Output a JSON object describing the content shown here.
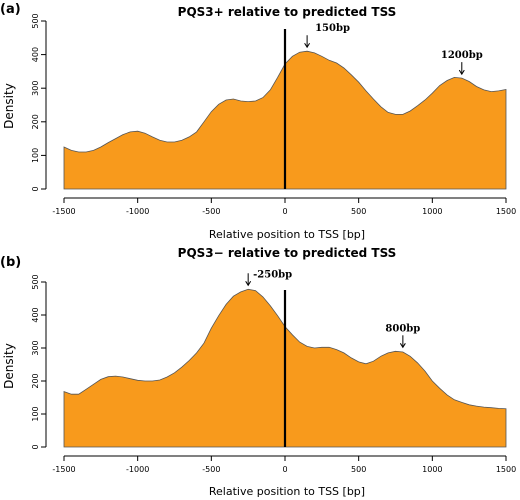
{
  "panels": [
    {
      "label": "(a)",
      "annotations": [
        {
          "text": "150bp",
          "x": 150,
          "y": 410
        },
        {
          "text": "1200bp",
          "x": 1200,
          "y": 330
        }
      ]
    },
    {
      "label": "(b)",
      "annotations": [
        {
          "text": "-250bp",
          "x": -250,
          "y": 478
        },
        {
          "text": "800bp",
          "x": 800,
          "y": 290
        }
      ]
    }
  ],
  "chart_data": [
    {
      "type": "area",
      "title": "PQS3+ relative to predicted TSS",
      "xlabel": "Relative position to TSS [bp]",
      "ylabel": "Density",
      "xlim": [
        -1500,
        1500
      ],
      "ylim": [
        0,
        500
      ],
      "xticks": [
        -1500,
        -1000,
        -500,
        0,
        500,
        1000,
        1500
      ],
      "yticks": [
        0,
        100,
        200,
        300,
        400,
        500
      ],
      "vline_x": 0,
      "x": [
        -1500,
        -1450,
        -1400,
        -1350,
        -1300,
        -1250,
        -1200,
        -1150,
        -1100,
        -1050,
        -1000,
        -950,
        -900,
        -850,
        -800,
        -750,
        -700,
        -650,
        -600,
        -550,
        -500,
        -450,
        -400,
        -350,
        -300,
        -250,
        -200,
        -150,
        -100,
        -50,
        0,
        50,
        100,
        150,
        200,
        250,
        300,
        350,
        400,
        450,
        500,
        550,
        600,
        650,
        700,
        750,
        800,
        850,
        900,
        950,
        1000,
        1050,
        1100,
        1150,
        1200,
        1250,
        1300,
        1350,
        1400,
        1450,
        1500
      ],
      "y": [
        125,
        115,
        110,
        110,
        115,
        125,
        138,
        150,
        162,
        170,
        172,
        166,
        155,
        145,
        140,
        140,
        145,
        155,
        170,
        200,
        230,
        252,
        265,
        268,
        262,
        260,
        262,
        272,
        295,
        332,
        372,
        395,
        407,
        410,
        405,
        395,
        383,
        375,
        360,
        340,
        318,
        292,
        268,
        245,
        228,
        222,
        222,
        232,
        248,
        265,
        285,
        308,
        323,
        332,
        330,
        320,
        305,
        295,
        290,
        292,
        296
      ]
    },
    {
      "type": "area",
      "title": "PQS3− relative to predicted TSS",
      "xlabel": "Relative position to TSS [bp]",
      "ylabel": "Density",
      "xlim": [
        -1500,
        1500
      ],
      "ylim": [
        0,
        500
      ],
      "xticks": [
        -1500,
        -1000,
        -500,
        0,
        500,
        1000,
        1500
      ],
      "yticks": [
        0,
        100,
        200,
        300,
        400,
        500
      ],
      "vline_x": 0,
      "x": [
        -1500,
        -1450,
        -1400,
        -1350,
        -1300,
        -1250,
        -1200,
        -1150,
        -1100,
        -1050,
        -1000,
        -950,
        -900,
        -850,
        -800,
        -750,
        -700,
        -650,
        -600,
        -550,
        -500,
        -450,
        -400,
        -350,
        -300,
        -250,
        -200,
        -150,
        -100,
        -50,
        0,
        50,
        100,
        150,
        200,
        250,
        300,
        350,
        400,
        450,
        500,
        550,
        600,
        650,
        700,
        750,
        800,
        850,
        900,
        950,
        1000,
        1050,
        1100,
        1150,
        1200,
        1250,
        1300,
        1350,
        1400,
        1450,
        1500
      ],
      "y": [
        168,
        160,
        160,
        175,
        190,
        205,
        213,
        215,
        212,
        207,
        202,
        200,
        200,
        203,
        212,
        225,
        242,
        262,
        285,
        315,
        360,
        398,
        432,
        457,
        470,
        478,
        474,
        455,
        428,
        398,
        365,
        340,
        318,
        305,
        300,
        302,
        302,
        295,
        285,
        270,
        258,
        252,
        260,
        275,
        285,
        290,
        288,
        275,
        255,
        230,
        200,
        178,
        158,
        143,
        135,
        128,
        124,
        121,
        119,
        117,
        116
      ]
    }
  ]
}
